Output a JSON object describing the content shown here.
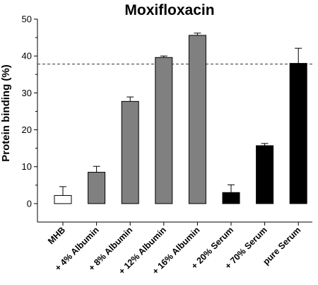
{
  "chart_data": {
    "type": "bar",
    "title": "Moxifloxacin",
    "xlabel": "",
    "ylabel": "Protein binding (%)",
    "ylim": [
      -5,
      50
    ],
    "yticks": [
      0,
      10,
      20,
      30,
      40,
      50
    ],
    "categories": [
      "MHB",
      "+ 4% Albumin",
      "+ 8% Albumin",
      "+ 12% Albumin",
      "+ 16% Albumin",
      "+ 20% Serum",
      "+ 70% Serum",
      "pure Serum"
    ],
    "values": [
      2.2,
      8.5,
      27.7,
      39.6,
      45.6,
      3.0,
      15.7,
      38.0
    ],
    "errors": [
      2.4,
      1.6,
      1.2,
      0.4,
      0.6,
      2.1,
      0.6,
      4.1
    ],
    "bar_colors": [
      "#ffffff",
      "#808080",
      "#808080",
      "#808080",
      "#808080",
      "#000000",
      "#000000",
      "#000000"
    ],
    "reference_line": 37.8,
    "grid": false
  }
}
